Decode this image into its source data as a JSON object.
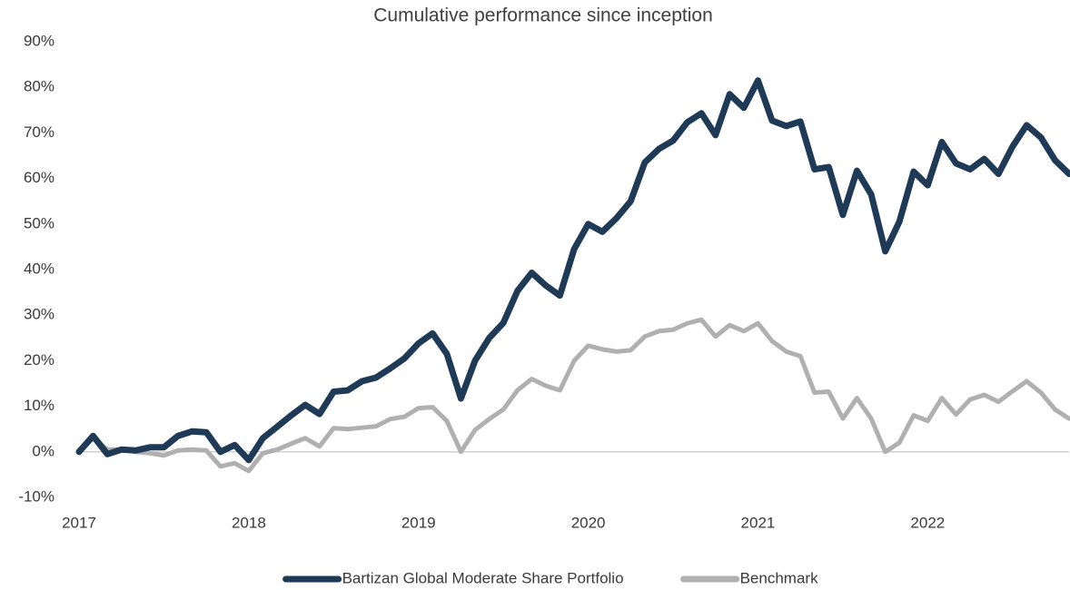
{
  "chart_data": {
    "type": "line",
    "title": "Cumulative performance since inception",
    "x": [
      2017,
      2017.083,
      2017.167,
      2017.25,
      2017.333,
      2017.417,
      2017.5,
      2017.583,
      2017.667,
      2017.75,
      2017.833,
      2017.917,
      2018,
      2018.083,
      2018.167,
      2018.25,
      2018.333,
      2018.417,
      2018.5,
      2018.583,
      2018.667,
      2018.75,
      2018.833,
      2018.917,
      2019,
      2019.083,
      2019.167,
      2019.25,
      2019.333,
      2019.417,
      2019.5,
      2019.583,
      2019.667,
      2019.75,
      2019.833,
      2019.917,
      2020,
      2020.083,
      2020.167,
      2020.25,
      2020.333,
      2020.417,
      2020.5,
      2020.583,
      2020.667,
      2020.75,
      2020.833,
      2020.917,
      2021,
      2021.083,
      2021.167,
      2021.25,
      2021.333,
      2021.417,
      2021.5,
      2021.583,
      2021.667,
      2021.75,
      2021.833,
      2021.917,
      2022,
      2022.083,
      2022.167,
      2022.25,
      2022.333,
      2022.417,
      2022.5,
      2022.583,
      2022.667,
      2022.75,
      2022.833
    ],
    "series": [
      {
        "name": "Bartizan Global Moderate Share Portfolio",
        "color": "#1f3a56",
        "values": [
          0,
          3.5,
          -0.5,
          0.5,
          0.3,
          1,
          1,
          3.5,
          4.5,
          4.3,
          0,
          1.5,
          -1.8,
          3,
          5.5,
          8,
          10.3,
          8.3,
          13.2,
          13.5,
          15.5,
          16.3,
          18.3,
          20.5,
          23.8,
          26,
          21.5,
          11.7,
          20,
          25,
          28.3,
          35.3,
          39.3,
          36.5,
          34.3,
          44.5,
          50,
          48.3,
          51.3,
          55,
          63.5,
          66.5,
          68.3,
          72.3,
          74.3,
          69.5,
          78.5,
          75.5,
          81.5,
          72.7,
          71.5,
          72.5,
          62,
          62.5,
          52,
          61.7,
          56.5,
          44,
          50.5,
          61.5,
          58.5,
          68,
          63.3,
          62,
          64.3,
          61,
          67,
          71.7,
          69,
          64,
          61
        ]
      },
      {
        "name": "Benchmark",
        "color": "#b0b0b0",
        "values": [
          0,
          3,
          0.5,
          0.5,
          0,
          -0.3,
          -0.8,
          0.3,
          0.5,
          0.3,
          -3.2,
          -2.5,
          -4.2,
          -0.3,
          0.5,
          1.8,
          3,
          1.2,
          5.2,
          5,
          5.3,
          5.6,
          7.2,
          7.7,
          9.6,
          9.8,
          6.8,
          0,
          4.8,
          7.2,
          9.3,
          13.5,
          16,
          14.5,
          13.5,
          20,
          23.3,
          22.5,
          22,
          22.3,
          25.3,
          26.5,
          26.8,
          28.2,
          29,
          25.3,
          27.8,
          26.5,
          28.2,
          24.3,
          22,
          21,
          13,
          13.2,
          7.3,
          11.8,
          7.3,
          0,
          2,
          8,
          6.8,
          11.8,
          8.2,
          11.5,
          12.5,
          11,
          13.3,
          15.5,
          13,
          9.3,
          7.3
        ]
      }
    ],
    "xlim": [
      2017,
      2022.833
    ],
    "xticks": [
      2017,
      2018,
      2019,
      2020,
      2021,
      2022
    ],
    "ylim": [
      -10,
      90
    ],
    "yticks": [
      {
        "value": -10,
        "label": "-10%"
      },
      {
        "value": 0,
        "label": "0%"
      },
      {
        "value": 10,
        "label": "10%"
      },
      {
        "value": 20,
        "label": "20%"
      },
      {
        "value": 30,
        "label": "30%"
      },
      {
        "value": 40,
        "label": "40%"
      },
      {
        "value": 50,
        "label": "50%"
      },
      {
        "value": 60,
        "label": "60%"
      },
      {
        "value": 70,
        "label": "70%"
      },
      {
        "value": 80,
        "label": "80%"
      },
      {
        "value": 90,
        "label": "90%"
      }
    ],
    "legend": "bottom"
  }
}
